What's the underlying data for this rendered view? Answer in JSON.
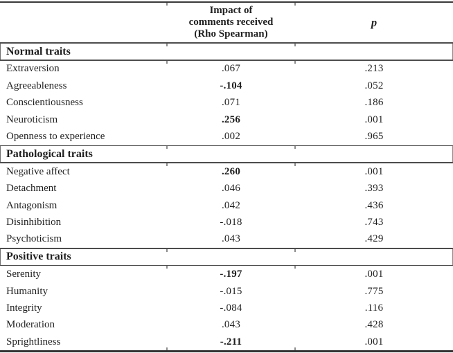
{
  "table": {
    "columns": {
      "rho_header": "Impact of\ncomments received\n(Rho Spearman)",
      "p_header": "p"
    },
    "sections": [
      {
        "label": "Normal traits",
        "rows": [
          {
            "name": "Extraversion",
            "rho": ".067",
            "rho_bold": false,
            "p": ".213"
          },
          {
            "name": "Agreeableness",
            "rho": "-.104",
            "rho_bold": true,
            "p": ".052"
          },
          {
            "name": "Conscientiousness",
            "rho": ".071",
            "rho_bold": false,
            "p": ".186"
          },
          {
            "name": "Neuroticism",
            "rho": ".256",
            "rho_bold": true,
            "p": ".001"
          },
          {
            "name": "Openness to experience",
            "rho": ".002",
            "rho_bold": false,
            "p": ".965"
          }
        ]
      },
      {
        "label": "Pathological traits",
        "rows": [
          {
            "name": "Negative affect",
            "rho": ".260",
            "rho_bold": true,
            "p": ".001"
          },
          {
            "name": "Detachment",
            "rho": ".046",
            "rho_bold": false,
            "p": ".393"
          },
          {
            "name": "Antagonism",
            "rho": ".042",
            "rho_bold": false,
            "p": ".436"
          },
          {
            "name": "Disinhibition",
            "rho": "-.018",
            "rho_bold": false,
            "p": ".743"
          },
          {
            "name": "Psychoticism",
            "rho": ".043",
            "rho_bold": false,
            "p": ".429"
          }
        ]
      },
      {
        "label": "Positive traits",
        "rows": [
          {
            "name": "Serenity",
            "rho": "-.197",
            "rho_bold": true,
            "p": ".001"
          },
          {
            "name": "Humanity",
            "rho": "-.015",
            "rho_bold": false,
            "p": ".775"
          },
          {
            "name": "Integrity",
            "rho": "-.084",
            "rho_bold": false,
            "p": ".116"
          },
          {
            "name": "Moderation",
            "rho": ".043",
            "rho_bold": false,
            "p": ".428"
          },
          {
            "name": "Sprightliness",
            "rho": "-.211",
            "rho_bold": true,
            "p": ".001"
          }
        ]
      }
    ]
  },
  "colors": {
    "background": "#ffffff",
    "text": "#1f1f1f",
    "rule_dark": "#383838",
    "rule_mid": "#4c4c4c"
  }
}
